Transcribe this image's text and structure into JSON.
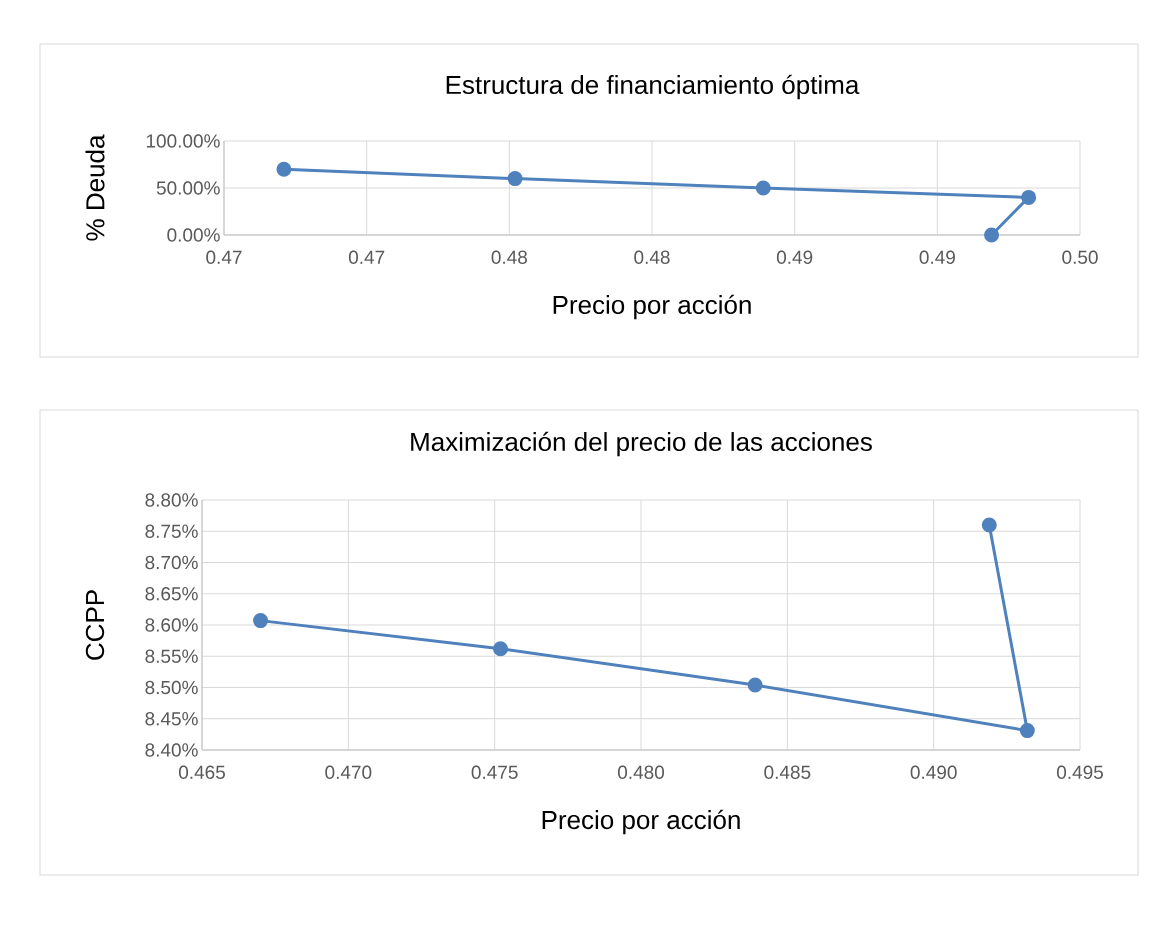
{
  "chart_data": [
    {
      "type": "line",
      "title": "Estructura de financiamiento óptima",
      "xlabel": "Precio por acción",
      "ylabel": "% Deuda",
      "x": [
        0.4671,
        0.4752,
        0.4839,
        0.4932,
        0.4919
      ],
      "values": [
        70,
        60,
        50,
        40,
        0
      ],
      "color": "#4f81bd",
      "marker": "circle",
      "line_style": "solid",
      "grid": true,
      "xlim": [
        0.465,
        0.495
      ],
      "ylim": [
        0,
        100
      ],
      "xticks": [
        {
          "value": 0.465,
          "label": "0.47"
        },
        {
          "value": 0.47,
          "label": "0.47"
        },
        {
          "value": 0.475,
          "label": "0.48"
        },
        {
          "value": 0.48,
          "label": "0.48"
        },
        {
          "value": 0.485,
          "label": "0.49"
        },
        {
          "value": 0.49,
          "label": "0.49"
        },
        {
          "value": 0.495,
          "label": "0.50"
        }
      ],
      "yticks": [
        {
          "value": 0,
          "label": "0.00%"
        },
        {
          "value": 50,
          "label": "50.00%"
        },
        {
          "value": 100,
          "label": "100.00%"
        }
      ]
    },
    {
      "type": "line",
      "title": "Maximización del precio de las acciones",
      "xlabel": "Precio por acción",
      "ylabel": "CCPP",
      "x": [
        0.467,
        0.4752,
        0.4839,
        0.4932,
        0.4919
      ],
      "values": [
        8.607,
        8.562,
        8.504,
        8.431,
        8.76
      ],
      "color": "#4f81bd",
      "marker": "circle",
      "line_style": "solid",
      "grid": true,
      "xlim": [
        0.465,
        0.495
      ],
      "ylim": [
        8.4,
        8.8
      ],
      "xticks": [
        0.465,
        {
          "value": 0.47,
          "label": "0.470"
        },
        0.475,
        {
          "value": 0.48,
          "label": "0.480"
        },
        0.485,
        {
          "value": 0.49,
          "label": "0.490"
        },
        0.495
      ],
      "yticks": [
        {
          "value": 8.4,
          "label": "8.40%"
        },
        {
          "value": 8.45,
          "label": "8.45%"
        },
        {
          "value": 8.5,
          "label": "8.50%"
        },
        {
          "value": 8.55,
          "label": "8.55%"
        },
        {
          "value": 8.6,
          "label": "8.60%"
        },
        {
          "value": 8.65,
          "label": "8.65%"
        },
        {
          "value": 8.7,
          "label": "8.70%"
        },
        {
          "value": 8.75,
          "label": "8.75%"
        },
        {
          "value": 8.8,
          "label": "8.80%"
        }
      ]
    }
  ]
}
